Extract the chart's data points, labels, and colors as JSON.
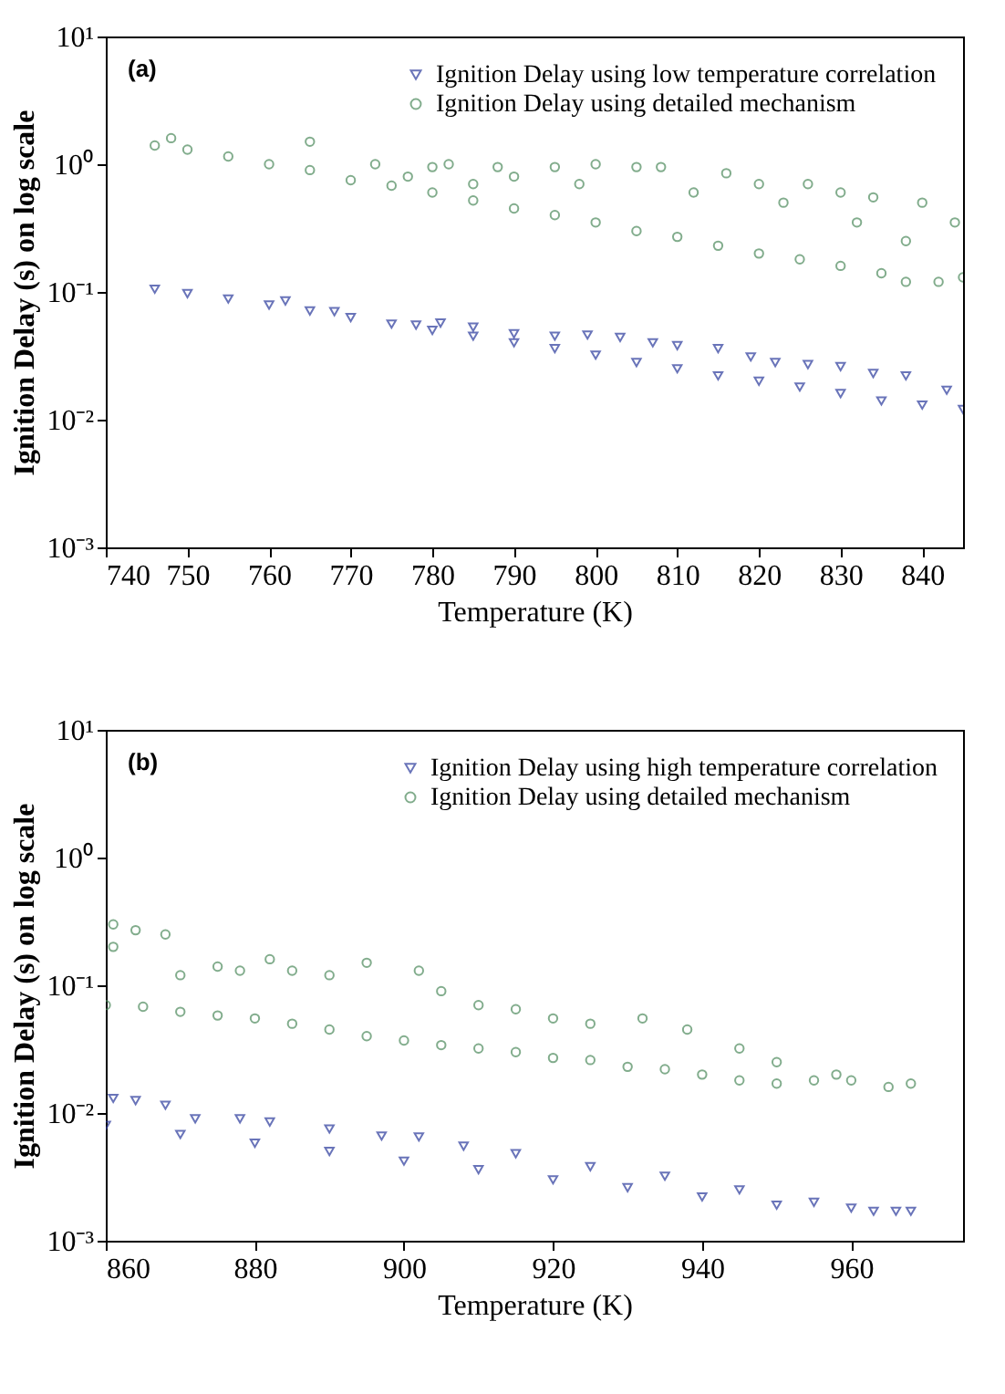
{
  "chart_data": [
    {
      "type": "scatter",
      "xlabel": "Temperature (K)",
      "ylabel": "Ignition Delay (s) on log scale",
      "annotations": [
        "(a)"
      ],
      "log": "y",
      "legend": "top right",
      "grid": false,
      "xlim": [
        740,
        845
      ],
      "xticks": [
        740,
        750,
        760,
        770,
        780,
        790,
        800,
        810,
        820,
        830,
        840
      ],
      "ylim": [
        0.001,
        10
      ],
      "yticks": [
        {
          "value": 0.001,
          "label": "10⁻³"
        },
        {
          "value": 0.01,
          "label": "10⁻²"
        },
        {
          "value": 0.1,
          "label": "10⁻¹"
        },
        {
          "value": 1,
          "label": "10⁰"
        },
        {
          "value": 10,
          "label": "10¹"
        }
      ],
      "series": [
        {
          "name": "Ignition Delay using low temperature correlation",
          "color": "#2b3a9c",
          "marker": "triangle",
          "x": [
            746,
            750,
            755,
            760,
            765,
            770,
            775,
            780,
            785,
            790,
            795,
            800,
            805,
            810,
            815,
            820,
            825,
            830,
            835,
            840,
            845,
            762,
            768,
            778,
            781,
            785,
            790,
            795,
            799,
            803,
            807,
            810,
            815,
            819,
            822,
            826,
            830,
            834,
            838,
            843
          ],
          "values": [
            0.105,
            0.097,
            0.088,
            0.079,
            0.071,
            0.063,
            0.056,
            0.05,
            0.045,
            0.04,
            0.036,
            0.032,
            0.028,
            0.025,
            0.022,
            0.02,
            0.018,
            0.016,
            0.014,
            0.013,
            0.012,
            0.085,
            0.07,
            0.055,
            0.057,
            0.053,
            0.047,
            0.045,
            0.046,
            0.044,
            0.04,
            0.038,
            0.036,
            0.031,
            0.028,
            0.027,
            0.026,
            0.023,
            0.022,
            0.017
          ]
        },
        {
          "name": "Ignition Delay using detailed mechanism",
          "color": "#4d8a5c",
          "marker": "circle",
          "x": [
            746,
            750,
            755,
            760,
            765,
            770,
            775,
            780,
            785,
            790,
            795,
            800,
            805,
            810,
            815,
            820,
            825,
            830,
            835,
            838,
            842,
            845,
            748,
            765,
            773,
            780,
            782,
            788,
            795,
            800,
            805,
            808,
            816,
            820,
            826,
            830,
            834,
            840,
            844,
            838,
            812,
            798,
            790,
            777,
            785,
            823,
            832
          ],
          "values": [
            1.4,
            1.3,
            1.15,
            1.0,
            0.9,
            0.75,
            0.68,
            0.6,
            0.52,
            0.45,
            0.4,
            0.35,
            0.3,
            0.27,
            0.23,
            0.2,
            0.18,
            0.16,
            0.14,
            0.12,
            0.12,
            0.13,
            1.6,
            1.5,
            1.0,
            0.95,
            1.0,
            0.95,
            0.95,
            1.0,
            0.95,
            0.95,
            0.85,
            0.7,
            0.7,
            0.6,
            0.55,
            0.5,
            0.35,
            0.25,
            0.6,
            0.7,
            0.8,
            0.8,
            0.7,
            0.5,
            0.35
          ]
        }
      ]
    },
    {
      "type": "scatter",
      "xlabel": "Temperature (K)",
      "ylabel": "Ignition Delay (s) on log scale",
      "annotations": [
        "(b)"
      ],
      "log": "y",
      "legend": "top right",
      "grid": false,
      "xlim": [
        860,
        975
      ],
      "xticks": [
        860,
        880,
        900,
        920,
        940,
        960
      ],
      "ylim": [
        0.001,
        10
      ],
      "yticks": [
        {
          "value": 0.001,
          "label": "10⁻³"
        },
        {
          "value": 0.01,
          "label": "10⁻²"
        },
        {
          "value": 0.1,
          "label": "10⁻¹"
        },
        {
          "value": 1,
          "label": "10⁰"
        },
        {
          "value": 10,
          "label": "10¹"
        }
      ],
      "series": [
        {
          "name": "Ignition Delay using high temperature correlation",
          "color": "#2b3a9c",
          "marker": "triangle",
          "x": [
            860,
            870,
            880,
            890,
            900,
            910,
            920,
            930,
            940,
            950,
            960,
            861,
            864,
            868,
            872,
            878,
            882,
            890,
            897,
            902,
            908,
            915,
            925,
            935,
            945,
            955,
            963,
            966,
            968
          ],
          "values": [
            0.008,
            0.0068,
            0.0058,
            0.005,
            0.0042,
            0.0036,
            0.003,
            0.0026,
            0.0022,
            0.0019,
            0.0018,
            0.013,
            0.0125,
            0.0115,
            0.009,
            0.009,
            0.0085,
            0.0075,
            0.0066,
            0.0065,
            0.0055,
            0.0048,
            0.0038,
            0.0032,
            0.0025,
            0.002,
            0.0017,
            0.0017,
            0.0017
          ]
        },
        {
          "name": "Ignition Delay using detailed mechanism",
          "color": "#4d8a5c",
          "marker": "circle",
          "x": [
            860,
            865,
            870,
            875,
            880,
            885,
            890,
            895,
            900,
            905,
            910,
            915,
            920,
            925,
            930,
            935,
            940,
            945,
            950,
            955,
            960,
            965,
            968,
            861,
            861,
            864,
            868,
            870,
            875,
            878,
            882,
            885,
            890,
            895,
            902,
            905,
            910,
            915,
            920,
            925,
            932,
            938,
            945,
            950,
            958
          ],
          "values": [
            0.07,
            0.068,
            0.062,
            0.058,
            0.055,
            0.05,
            0.045,
            0.04,
            0.037,
            0.034,
            0.032,
            0.03,
            0.027,
            0.026,
            0.023,
            0.022,
            0.02,
            0.018,
            0.017,
            0.018,
            0.018,
            0.016,
            0.017,
            0.3,
            0.2,
            0.27,
            0.25,
            0.12,
            0.14,
            0.13,
            0.16,
            0.13,
            0.12,
            0.15,
            0.13,
            0.09,
            0.07,
            0.065,
            0.055,
            0.05,
            0.055,
            0.045,
            0.032,
            0.025,
            0.02
          ]
        }
      ]
    }
  ]
}
